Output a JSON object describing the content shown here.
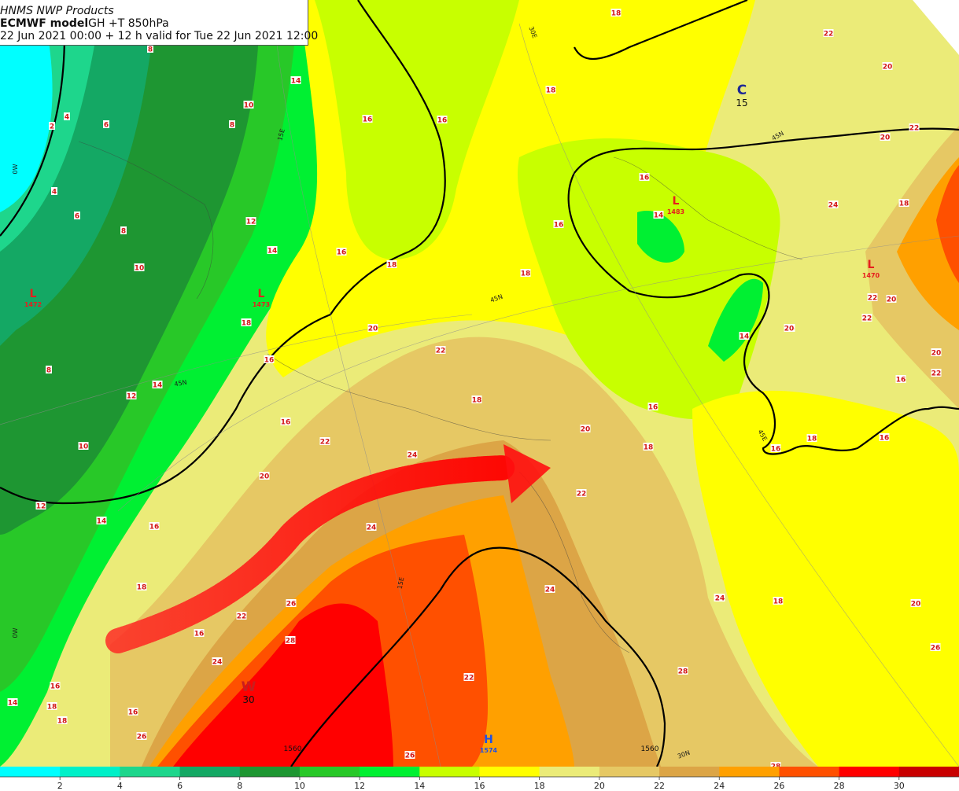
{
  "header": {
    "products": "HNMS NWP Products",
    "model": "ECMWF model",
    "parameter": "GH +T 850hPa",
    "validity": "22 Jun 2021 00:00 + 12 h valid for Tue 22 Jun 2021 12:00"
  },
  "colorbar": {
    "ticks": [
      "2",
      "4",
      "6",
      "8",
      "10",
      "12",
      "14",
      "16",
      "18",
      "20",
      "22",
      "24",
      "26",
      "28",
      "30"
    ],
    "colors": [
      "#00ffff",
      "#00f0c8",
      "#1ed68c",
      "#14a864",
      "#1e9632",
      "#28c828",
      "#00f032",
      "#c8ff00",
      "#ffff00",
      "#ebeb78",
      "#e6c864",
      "#dca546",
      "#ffa000",
      "#ff5000",
      "#ff0000",
      "#c80000"
    ]
  },
  "pressure_centers": [
    {
      "letter": "L",
      "value": "1472",
      "color": "#e61e1e"
    },
    {
      "letter": "L",
      "value": "1473",
      "color": "#e61e1e"
    },
    {
      "letter": "L",
      "value": "1483",
      "color": "#e61e1e"
    },
    {
      "letter": "L",
      "value": "1470",
      "color": "#e61e1e"
    },
    {
      "letter": "H",
      "value": "1574",
      "color": "#1e50e6"
    }
  ],
  "thermal_centers": [
    {
      "letter": "C",
      "value": "15",
      "color": "#1e2896"
    },
    {
      "letter": "W",
      "value": "30",
      "color": "#c81e1e"
    }
  ],
  "isotherm_labels": [
    "8",
    "2",
    "4",
    "6",
    "8",
    "10",
    "14",
    "16",
    "16",
    "18",
    "18",
    "22",
    "20",
    "22",
    "6",
    "4",
    "12",
    "14",
    "16",
    "18",
    "16",
    "14",
    "16",
    "8",
    "10",
    "18",
    "18",
    "20",
    "16",
    "22",
    "16",
    "24",
    "26",
    "22",
    "20",
    "18",
    "16",
    "20",
    "8",
    "12",
    "14",
    "16",
    "14",
    "22",
    "18",
    "16",
    "20",
    "18",
    "16",
    "18",
    "10",
    "22",
    "24",
    "20",
    "22",
    "16",
    "18",
    "12",
    "14",
    "16",
    "24",
    "22",
    "16",
    "18",
    "20",
    "26",
    "28",
    "24",
    "24",
    "20",
    "18",
    "16",
    "14",
    "18",
    "22",
    "26",
    "28",
    "26",
    "22",
    "20",
    "24",
    "20",
    "16",
    "26",
    "28",
    "22"
  ],
  "graticule_labels": [
    "30E",
    "15E",
    "0W",
    "45N",
    "45N",
    "45N",
    "45E",
    "0W",
    "15E",
    "30N"
  ],
  "height_contour_labels": [
    "1560",
    "1560"
  ]
}
